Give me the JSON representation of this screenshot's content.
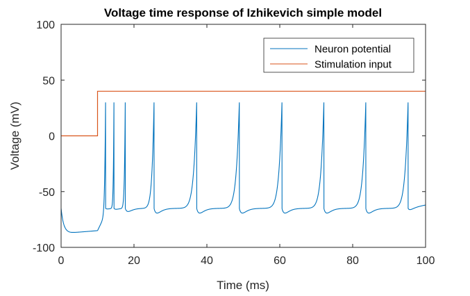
{
  "chart_data": {
    "type": "line",
    "title": "Voltage time response of Izhikevich simple model",
    "xlabel": "Time (ms)",
    "ylabel": "Voltage (mV)",
    "xlim": [
      0,
      100
    ],
    "ylim": [
      -100,
      100
    ],
    "xticks": [
      0,
      20,
      40,
      60,
      80,
      100
    ],
    "yticks": [
      -100,
      -50,
      0,
      50,
      100
    ],
    "xtick_labels": [
      "0",
      "20",
      "40",
      "60",
      "80",
      "100"
    ],
    "ytick_labels": [
      "-100",
      "-50",
      "0",
      "50",
      "100"
    ],
    "grid": false,
    "legend_position": "top-right",
    "series": [
      {
        "name": "Neuron potential",
        "color": "#0072BD",
        "rest_start": -65,
        "pre_stimulus_min": -87,
        "pre_stimulus_value_at_onset": -85,
        "peak": 30,
        "reset": -65,
        "spike_times": [
          12.2,
          14.5,
          17.6,
          25.5,
          37.2,
          48.9,
          60.6,
          72.1,
          83.6,
          95.2
        ]
      },
      {
        "name": "Stimulation input",
        "color": "#D95319",
        "x": [
          0,
          10,
          10,
          100
        ],
        "y": [
          0,
          0,
          40,
          40
        ]
      }
    ]
  }
}
